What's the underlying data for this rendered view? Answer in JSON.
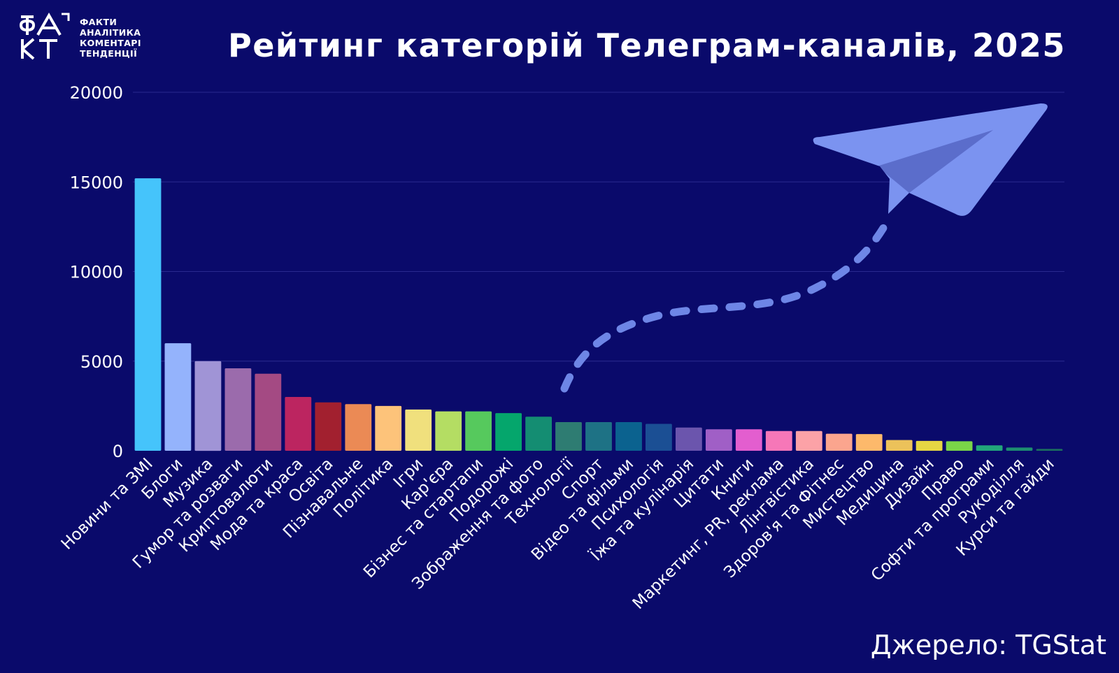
{
  "header": {
    "title": "Рейтинг категорій Телеграм-каналів, 2025"
  },
  "logo": {
    "mark_text": "ФАКТ",
    "lines": [
      "ФАКТИ",
      "АНАЛІТИКА",
      "КОМЕНТАРІ",
      "ТЕНДЕНЦІЇ"
    ]
  },
  "footer": {
    "source": "Джерело: TGStat"
  },
  "decoration": {
    "icon": "paper-plane-icon",
    "plane_color": "#7b93f0",
    "trail_color": "#6e86e6"
  },
  "chart_data": {
    "type": "bar",
    "title": "Рейтинг категорій Телеграм-каналів, 2025",
    "xlabel": "",
    "ylabel": "",
    "ylim": [
      0,
      20000
    ],
    "yticks": [
      0,
      5000,
      10000,
      15000,
      20000
    ],
    "grid": true,
    "legend": "none",
    "categories": [
      "Новини та ЗМІ",
      "Блоги",
      "Музика",
      "Гумор та розваги",
      "Криптовалюти",
      "Мода та краса",
      "Освіта",
      "Пізнавальне",
      "Політика",
      "Ігри",
      "Кар'єра",
      "Бізнес та стартапи",
      "Подорожі",
      "Зображення та фото",
      "Технології",
      "Спорт",
      "Відео та фільми",
      "Психологія",
      "Їжа та кулінарія",
      "Цитати",
      "Книги",
      "Маркетинг, PR, реклама",
      "Лінгвістика",
      "Здоров'я та Фітнес",
      "Мистецтво",
      "Медицина",
      "Дизайн",
      "Право",
      "Софти та програми",
      "Рукоділля",
      "Курси та гайди"
    ],
    "values": [
      15200,
      6000,
      5000,
      4600,
      4300,
      3000,
      2700,
      2600,
      2500,
      2300,
      2200,
      2200,
      2100,
      1900,
      1600,
      1600,
      1600,
      1500,
      1300,
      1200,
      1200,
      1100,
      1100,
      950,
      930,
      600,
      550,
      530,
      300,
      180,
      100
    ],
    "colors": [
      "#45c4fb",
      "#94b3fc",
      "#a094d6",
      "#9b6bac",
      "#a44a83",
      "#bc2560",
      "#a2202f",
      "#eb8a55",
      "#fdc37a",
      "#f0e07d",
      "#b4dd63",
      "#56c95d",
      "#05a66c",
      "#148d72",
      "#2e7c72",
      "#1e7285",
      "#0b628f",
      "#1b4f94",
      "#6b55ad",
      "#a05fc6",
      "#e35ecf",
      "#f677b8",
      "#fca2a7",
      "#fba58e",
      "#fdb96b",
      "#ecc25a",
      "#e5d643",
      "#7ad648",
      "#22a67a",
      "#1e8d70",
      "#1c6f5e"
    ]
  }
}
